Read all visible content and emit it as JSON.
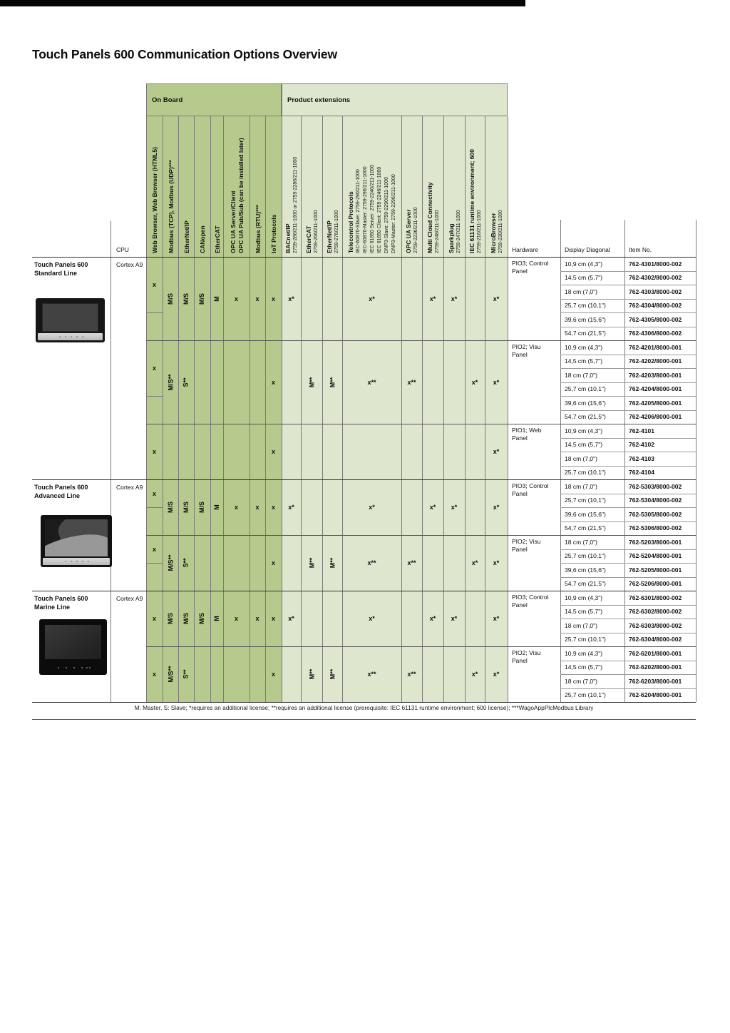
{
  "title": "Touch Panels 600 Communication Options Overview",
  "groups": {
    "on_board": "On Board",
    "extensions": "Product extensions"
  },
  "corner_headers": {
    "cpu": "CPU",
    "hardware": "Hardware",
    "display": "Display Diagonal",
    "item": "Item No."
  },
  "footnote": "M: Master, S: Slave; *requires an additional license; **requires an additional license (prerequisite: IEC 61131 runtime environment; 600 license); ***WagoAppPlcModbus Library",
  "columns": [
    {
      "id": "wb",
      "group": "on",
      "title": [
        "Web Browser, Web Browser (HTML5)"
      ]
    },
    {
      "id": "mtcp",
      "group": "on",
      "title": [
        "Modbus (TCP), Modbus (UDP)***"
      ]
    },
    {
      "id": "eip",
      "group": "on",
      "title": [
        "EtherNet/IP"
      ]
    },
    {
      "id": "can",
      "group": "on",
      "title": [
        "CANopen"
      ]
    },
    {
      "id": "ecat",
      "group": "on",
      "title": [
        "EtherCAT"
      ]
    },
    {
      "id": "opcua",
      "group": "on",
      "title": [
        "OPC UA Server/Client",
        "OPC UA Pub/Sub (can be installed later)"
      ]
    },
    {
      "id": "mrtu",
      "group": "on",
      "title": [
        "Modbus (RTU)***"
      ]
    },
    {
      "id": "iot",
      "group": "on",
      "title": [
        "IoT Protocols"
      ]
    },
    {
      "id": "bacnet",
      "group": "ext",
      "title": [
        "BACnet/IP"
      ],
      "sub": [
        "2759-286/211-1000 or 2759-2286/211-1000"
      ]
    },
    {
      "id": "ecat_x",
      "group": "ext",
      "title": [
        "EtherCAT"
      ],
      "sub": [
        "2759-266/211-1000"
      ]
    },
    {
      "id": "eip_x",
      "group": "ext",
      "title": [
        "EtherNet/IP"
      ],
      "sub": [
        "2759-276/211-1000"
      ]
    },
    {
      "id": "tele",
      "group": "ext",
      "title": [
        "Telecontrol Protocols"
      ],
      "sub": [
        "IEC-60870-Slave: 2759-290/211-1000",
        "IEC-60870-Master: 2759-296/211-1000",
        "IEC 61850 Server: 2759-2240/211-1000",
        "IEC 61850 Client: 2759-2246/211-1000",
        "DNP3-Slave: 2759-2290/211-1000",
        "DNP3-Master: 2759-2296/211-1000"
      ]
    },
    {
      "id": "opcsrv",
      "group": "ext",
      "title": [
        "OPC UA Server"
      ],
      "sub": [
        "2759-2236/211-1000"
      ]
    },
    {
      "id": "cloud",
      "group": "ext",
      "title": [
        "Multi Cloud Connectivity"
      ],
      "sub": [
        "2759-248/211-1000"
      ]
    },
    {
      "id": "spark",
      "group": "ext",
      "title": [
        "Sparkplug"
      ],
      "sub": [
        "2759-247/211-1000"
      ]
    },
    {
      "id": "iec",
      "group": "ext",
      "title": [
        "IEC 61131 runtime environment; 600"
      ],
      "sub": [
        "2759-216/211-1000"
      ]
    },
    {
      "id": "micro",
      "group": "ext",
      "title": [
        "MicroBrowser"
      ],
      "sub": [
        "2759-230/211-1000"
      ]
    }
  ],
  "lines": [
    {
      "name": "Touch Panels 600 Standard Line",
      "cpu": "Cortex A9",
      "image": "standard-line-panel-photo",
      "blocks": [
        {
          "hardware": "PIO3; Control Panel",
          "marks": {
            "wb": {
              "m": "x",
              "rows": 4
            },
            "mtcp": {
              "m": "M/S"
            },
            "eip": {
              "m": "M/S"
            },
            "can": {
              "m": "M/S"
            },
            "ecat": {
              "m": "M"
            },
            "opcua": {
              "m": "x"
            },
            "mrtu": {
              "m": "x"
            },
            "iot": {
              "m": "x"
            },
            "bacnet": {
              "m": "x*"
            },
            "tele": {
              "m": "x*"
            },
            "cloud": {
              "m": "x*"
            },
            "spark": {
              "m": "x*"
            },
            "micro": {
              "m": "x*"
            }
          },
          "rows": [
            {
              "display": "10,9 cm (4,3\")",
              "item": "762-4301/8000-002"
            },
            {
              "display": "14,5 cm (5,7\")",
              "item": "762-4302/8000-002"
            },
            {
              "display": "18 cm (7,0\")",
              "item": "762-4303/8000-002"
            },
            {
              "display": "25,7 cm (10,1\")",
              "item": "762-4304/8000-002"
            },
            {
              "display": "39,6 cm (15,6\")",
              "item": "762-4305/8000-002"
            },
            {
              "display": "54,7 cm (21,5\")",
              "item": "762-4306/8000-002"
            }
          ]
        },
        {
          "hardware": "PIO2; Visu Panel",
          "marks": {
            "wb": {
              "m": "x",
              "rows": 4
            },
            "mtcp": {
              "m": "M/S**"
            },
            "eip": {
              "m": "S**"
            },
            "iot": {
              "m": "x"
            },
            "ecat_x": {
              "m": "M**"
            },
            "eip_x": {
              "m": "M**"
            },
            "tele": {
              "m": "x**"
            },
            "opcsrv": {
              "m": "x**"
            },
            "iec": {
              "m": "x*"
            },
            "micro": {
              "m": "x*"
            }
          },
          "rows": [
            {
              "display": "10,9 cm (4,3\")",
              "item": "762-4201/8000-001"
            },
            {
              "display": "14,5 cm (5,7\")",
              "item": "762-4202/8000-001"
            },
            {
              "display": "18 cm (7,0\")",
              "item": "762-4203/8000-001"
            },
            {
              "display": "25,7 cm (10,1\")",
              "item": "762-4204/8000-001"
            },
            {
              "display": "39,6 cm (15,6\")",
              "item": "762-4205/8000-001"
            },
            {
              "display": "54,7 cm (21,5\")",
              "item": "762-4206/8000-001"
            }
          ]
        },
        {
          "hardware": "PIO1; Web Panel",
          "marks": {
            "wb": {
              "m": "x"
            },
            "iot": {
              "m": "x"
            },
            "micro": {
              "m": "x*"
            }
          },
          "rows": [
            {
              "display": "10,9 cm (4,3\")",
              "item": "762-4101"
            },
            {
              "display": "14,5 cm (5,7\")",
              "item": "762-4102"
            },
            {
              "display": "18 cm (7,0\")",
              "item": "762-4103"
            },
            {
              "display": "25,7 cm (10,1\")",
              "item": "762-4104"
            }
          ]
        }
      ]
    },
    {
      "name": "Touch Panels 600 Advanced Line",
      "cpu": "Cortex A9",
      "image": "advanced-line-panel-photo",
      "blocks": [
        {
          "hardware": "PIO3; Control Panel",
          "marks": {
            "wb": {
              "m": "x",
              "rows": 2
            },
            "mtcp": {
              "m": "M/S"
            },
            "eip": {
              "m": "M/S"
            },
            "can": {
              "m": "M/S"
            },
            "ecat": {
              "m": "M"
            },
            "opcua": {
              "m": "x"
            },
            "mrtu": {
              "m": "x"
            },
            "iot": {
              "m": "x"
            },
            "bacnet": {
              "m": "x*"
            },
            "tele": {
              "m": "x*"
            },
            "cloud": {
              "m": "x*"
            },
            "spark": {
              "m": "x*"
            },
            "micro": {
              "m": "x*"
            }
          },
          "rows": [
            {
              "display": "18 cm (7,0\")",
              "item": "762-5303/8000-002"
            },
            {
              "display": "25,7 cm (10,1\")",
              "item": "762-5304/8000-002"
            },
            {
              "display": "39,6 cm (15,6\")",
              "item": "762-5305/8000-002"
            },
            {
              "display": "54,7 cm (21,5\")",
              "item": "762-5306/8000-002"
            }
          ]
        },
        {
          "hardware": "PIO2; Visu Panel",
          "marks": {
            "wb": {
              "m": "x",
              "rows": 2
            },
            "mtcp": {
              "m": "M/S**"
            },
            "eip": {
              "m": "S**"
            },
            "iot": {
              "m": "x"
            },
            "ecat_x": {
              "m": "M**"
            },
            "eip_x": {
              "m": "M**"
            },
            "tele": {
              "m": "x**"
            },
            "opcsrv": {
              "m": "x**"
            },
            "iec": {
              "m": "x*"
            },
            "micro": {
              "m": "x*"
            }
          },
          "rows": [
            {
              "display": "18 cm (7,0\")",
              "item": "762-5203/8000-001"
            },
            {
              "display": "25,7 cm (10,1\")",
              "item": "762-5204/8000-001"
            },
            {
              "display": "39,6 cm (15,6\")",
              "item": "762-5205/8000-001"
            },
            {
              "display": "54,7 cm (21,5\")",
              "item": "762-5206/8000-001"
            }
          ]
        }
      ]
    },
    {
      "name": "Touch Panels 600 Marine Line",
      "cpu": "Cortex A9",
      "image": "marine-line-panel-photo",
      "blocks": [
        {
          "hardware": "PIO3; Control Panel",
          "marks": {
            "wb": {
              "m": "x"
            },
            "mtcp": {
              "m": "M/S"
            },
            "eip": {
              "m": "M/S"
            },
            "can": {
              "m": "M/S"
            },
            "ecat": {
              "m": "M"
            },
            "opcua": {
              "m": "x"
            },
            "mrtu": {
              "m": "x"
            },
            "iot": {
              "m": "x"
            },
            "bacnet": {
              "m": "x*"
            },
            "tele": {
              "m": "x*"
            },
            "cloud": {
              "m": "x*"
            },
            "spark": {
              "m": "x*"
            },
            "micro": {
              "m": "x*"
            }
          },
          "rows": [
            {
              "display": "10,9 cm (4,3\")",
              "item": "762-6301/8000-002"
            },
            {
              "display": "14,5 cm (5,7\")",
              "item": "762-6302/8000-002"
            },
            {
              "display": "18 cm (7,0\")",
              "item": "762-6303/8000-002"
            },
            {
              "display": "25,7 cm (10,1\")",
              "item": "762-6304/8000-002"
            }
          ]
        },
        {
          "hardware": "PIO2; Visu Panel",
          "marks": {
            "wb": {
              "m": "x"
            },
            "mtcp": {
              "m": "M/S**"
            },
            "eip": {
              "m": "S**"
            },
            "iot": {
              "m": "x"
            },
            "ecat_x": {
              "m": "M**"
            },
            "eip_x": {
              "m": "M**"
            },
            "tele": {
              "m": "x**"
            },
            "opcsrv": {
              "m": "x**"
            },
            "iec": {
              "m": "x*"
            },
            "micro": {
              "m": "x*"
            }
          },
          "rows": [
            {
              "display": "10,9 cm (4,3\")",
              "item": "762-6201/8000-001"
            },
            {
              "display": "14,5 cm (5,7\")",
              "item": "762-6202/8000-001"
            },
            {
              "display": "18 cm (7,0\")",
              "item": "762-6203/8000-001"
            },
            {
              "display": "25,7 cm (10,1\")",
              "item": "762-6204/8000-001"
            }
          ]
        }
      ]
    }
  ]
}
